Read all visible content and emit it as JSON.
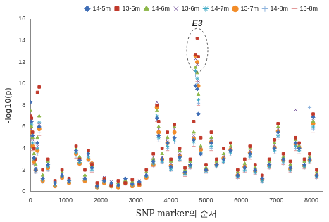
{
  "chart_data": {
    "type": "scatter",
    "x_label": "SNP marker의 순서",
    "y_label": "-log10(p)",
    "xlim": [
      0,
      8300
    ],
    "xticks": [
      0,
      1000,
      2000,
      3000,
      4000,
      5000,
      6000,
      7000,
      8000
    ],
    "ylim": [
      0,
      16
    ],
    "yticks": [
      0,
      2,
      4,
      6,
      8,
      10,
      12,
      14,
      16
    ],
    "grid": false,
    "legend": "upper right",
    "annotations": [
      {
        "text": "E3",
        "x": 4750,
        "y": 15.2
      }
    ],
    "x": [
      0,
      30,
      60,
      100,
      150,
      200,
      250,
      350,
      500,
      700,
      900,
      1100,
      1300,
      1400,
      1550,
      1650,
      1750,
      1900,
      2100,
      2300,
      2500,
      2700,
      2900,
      3100,
      3300,
      3500,
      3600,
      3650,
      3750,
      3900,
      4000,
      4100,
      4250,
      4400,
      4550,
      4650,
      4700,
      4750,
      4780,
      4850,
      5000,
      5150,
      5300,
      5500,
      5700,
      5900,
      6100,
      6250,
      6400,
      6600,
      6800,
      6950,
      7050,
      7200,
      7400,
      7550,
      7650,
      7800,
      7950,
      8050,
      8150
    ],
    "series": [
      {
        "name": "14-5m",
        "color": "#3e6db5",
        "marker": "diamond",
        "values": [
          8.3,
          6.5,
          5.2,
          3.1,
          2.0,
          4.5,
          6.0,
          1.2,
          2.5,
          0.8,
          1.5,
          1.0,
          3.8,
          2.9,
          1.2,
          3.5,
          2.2,
          0.5,
          1.0,
          0.8,
          0.6,
          1.2,
          0.7,
          0.9,
          1.5,
          2.8,
          6.8,
          5.2,
          3.0,
          4.5,
          2.3,
          5.0,
          3.2,
          1.8,
          2.5,
          4.8,
          9.8,
          9.5,
          7.2,
          3.5,
          2.0,
          4.5,
          2.5,
          3.0,
          3.8,
          1.5,
          2.2,
          3.5,
          2.0,
          1.2,
          2.5,
          4.0,
          5.5,
          3.0,
          2.2,
          4.5,
          4.0,
          2.5,
          3.0,
          6.9,
          1.5
        ]
      },
      {
        "name": "13-5m",
        "color": "#c0392b",
        "marker": "square",
        "values": [
          7.0,
          6.8,
          5.5,
          4.0,
          3.0,
          9.2,
          9.7,
          2.0,
          3.0,
          1.0,
          2.0,
          1.2,
          4.2,
          3.0,
          2.0,
          3.8,
          2.5,
          0.8,
          1.2,
          0.6,
          1.0,
          0.8,
          1.1,
          0.7,
          2.0,
          3.5,
          8.0,
          6.5,
          4.0,
          5.5,
          3.0,
          6.2,
          4.0,
          2.2,
          3.0,
          6.5,
          12.7,
          14.2,
          12.5,
          5.0,
          2.5,
          5.5,
          3.0,
          4.0,
          4.5,
          2.0,
          3.0,
          4.2,
          2.5,
          1.5,
          3.0,
          4.8,
          6.3,
          3.5,
          2.8,
          5.0,
          4.5,
          3.0,
          3.5,
          7.2,
          2.0
        ]
      },
      {
        "name": "14-6m",
        "color": "#8db84a",
        "marker": "triangle",
        "values": [
          7.5,
          6.0,
          5.0,
          3.5,
          2.5,
          5.0,
          7.0,
          1.5,
          2.8,
          0.9,
          1.8,
          1.1,
          4.0,
          3.2,
          1.5,
          3.6,
          2.4,
          0.6,
          1.1,
          0.7,
          0.8,
          1.0,
          0.9,
          0.8,
          1.8,
          3.0,
          7.5,
          6.0,
          3.5,
          5.0,
          2.8,
          6.0,
          3.8,
          2.0,
          2.8,
          5.5,
          11.5,
          11.0,
          9.0,
          4.2,
          2.2,
          5.0,
          2.8,
          3.5,
          4.2,
          1.8,
          2.6,
          4.0,
          2.2,
          1.3,
          2.8,
          4.5,
          6.0,
          3.2,
          2.5,
          4.8,
          4.2,
          2.8,
          3.2,
          6.5,
          1.8
        ]
      },
      {
        "name": "13-6m",
        "color": "#7a5a9e",
        "marker": "x",
        "values": [
          6.5,
          5.8,
          4.8,
          3.2,
          2.2,
          4.2,
          6.2,
          1.3,
          2.6,
          0.7,
          1.6,
          1.3,
          3.9,
          3.0,
          1.4,
          3.4,
          2.6,
          0.7,
          1.3,
          0.9,
          0.7,
          1.1,
          0.8,
          1.0,
          1.6,
          3.2,
          8.3,
          5.8,
          3.2,
          4.8,
          2.6,
          5.8,
          3.5,
          1.9,
          2.6,
          5.2,
          12.3,
          11.8,
          10.2,
          4.0,
          2.1,
          4.8,
          2.6,
          3.3,
          4.0,
          1.6,
          2.4,
          3.8,
          2.1,
          1.2,
          2.6,
          4.3,
          5.8,
          3.0,
          2.4,
          7.6,
          4.4,
          2.6,
          3.1,
          6.6,
          1.6
        ]
      },
      {
        "name": "14-7m",
        "color": "#3fa9c4",
        "marker": "star",
        "values": [
          6.8,
          6.2,
          4.5,
          3.0,
          2.1,
          4.0,
          6.4,
          1.1,
          2.3,
          0.6,
          1.4,
          0.9,
          3.6,
          2.7,
          1.1,
          3.2,
          2.0,
          0.4,
          0.9,
          0.5,
          0.5,
          0.9,
          0.6,
          0.7,
          1.4,
          2.6,
          7.0,
          5.0,
          2.8,
          4.2,
          2.1,
          4.8,
          3.0,
          1.6,
          2.3,
          4.6,
          11.2,
          10.5,
          8.5,
          3.6,
          1.9,
          4.2,
          2.4,
          2.8,
          3.6,
          1.4,
          2.0,
          3.3,
          1.8,
          1.0,
          2.3,
          3.8,
          5.2,
          2.8,
          2.0,
          4.2,
          3.8,
          2.3,
          2.8,
          6.0,
          1.4
        ]
      },
      {
        "name": "13-7m",
        "color": "#f28c28",
        "marker": "circle",
        "values": [
          6.0,
          5.5,
          4.2,
          2.8,
          2.0,
          3.8,
          5.8,
          1.0,
          2.2,
          0.5,
          1.3,
          0.8,
          3.5,
          2.6,
          1.0,
          3.0,
          2.6,
          0.4,
          0.8,
          0.5,
          0.4,
          0.8,
          0.5,
          0.6,
          1.3,
          2.5,
          7.8,
          5.5,
          3.0,
          4.5,
          2.4,
          5.5,
          3.3,
          1.7,
          2.4,
          4.9,
          12.6,
          12.0,
          9.8,
          3.9,
          2.0,
          4.6,
          2.5,
          3.1,
          3.9,
          1.5,
          2.3,
          3.6,
          1.9,
          1.1,
          2.4,
          4.1,
          5.6,
          2.9,
          2.1,
          4.4,
          4.1,
          2.4,
          2.9,
          6.3,
          1.5
        ]
      },
      {
        "name": "14-8m",
        "color": "#8fb4de",
        "marker": "plus",
        "values": [
          5.8,
          5.0,
          4.0,
          2.6,
          1.8,
          3.5,
          5.5,
          0.9,
          2.0,
          0.5,
          1.2,
          0.8,
          3.3,
          2.5,
          0.9,
          2.9,
          1.9,
          0.3,
          0.8,
          0.4,
          0.4,
          0.7,
          0.5,
          0.6,
          1.2,
          2.4,
          6.8,
          4.8,
          2.7,
          4.0,
          2.0,
          4.6,
          2.9,
          1.5,
          2.2,
          4.4,
          10.8,
          10.0,
          8.2,
          3.4,
          1.8,
          4.0,
          2.3,
          2.7,
          3.5,
          1.3,
          1.9,
          3.2,
          1.7,
          0.9,
          2.2,
          3.7,
          5.0,
          2.6,
          1.9,
          4.0,
          3.7,
          2.2,
          7.8,
          5.8,
          1.3
        ]
      },
      {
        "name": "13-8m",
        "color": "#e39a9a",
        "marker": "dash",
        "values": [
          5.5,
          4.8,
          3.8,
          2.5,
          1.7,
          3.3,
          5.2,
          0.8,
          1.9,
          0.4,
          1.1,
          0.7,
          3.1,
          2.4,
          0.8,
          2.8,
          1.8,
          0.3,
          0.7,
          0.4,
          0.3,
          0.6,
          0.4,
          0.5,
          1.1,
          2.3,
          6.5,
          4.6,
          2.6,
          3.8,
          1.9,
          4.4,
          2.8,
          1.4,
          2.1,
          4.2,
          11.0,
          10.2,
          8.0,
          3.3,
          1.7,
          3.8,
          2.2,
          2.6,
          3.3,
          1.2,
          1.8,
          3.0,
          1.6,
          0.9,
          2.1,
          3.5,
          4.8,
          2.5,
          1.8,
          3.8,
          3.5,
          2.1,
          2.6,
          5.5,
          1.2
        ]
      }
    ]
  }
}
